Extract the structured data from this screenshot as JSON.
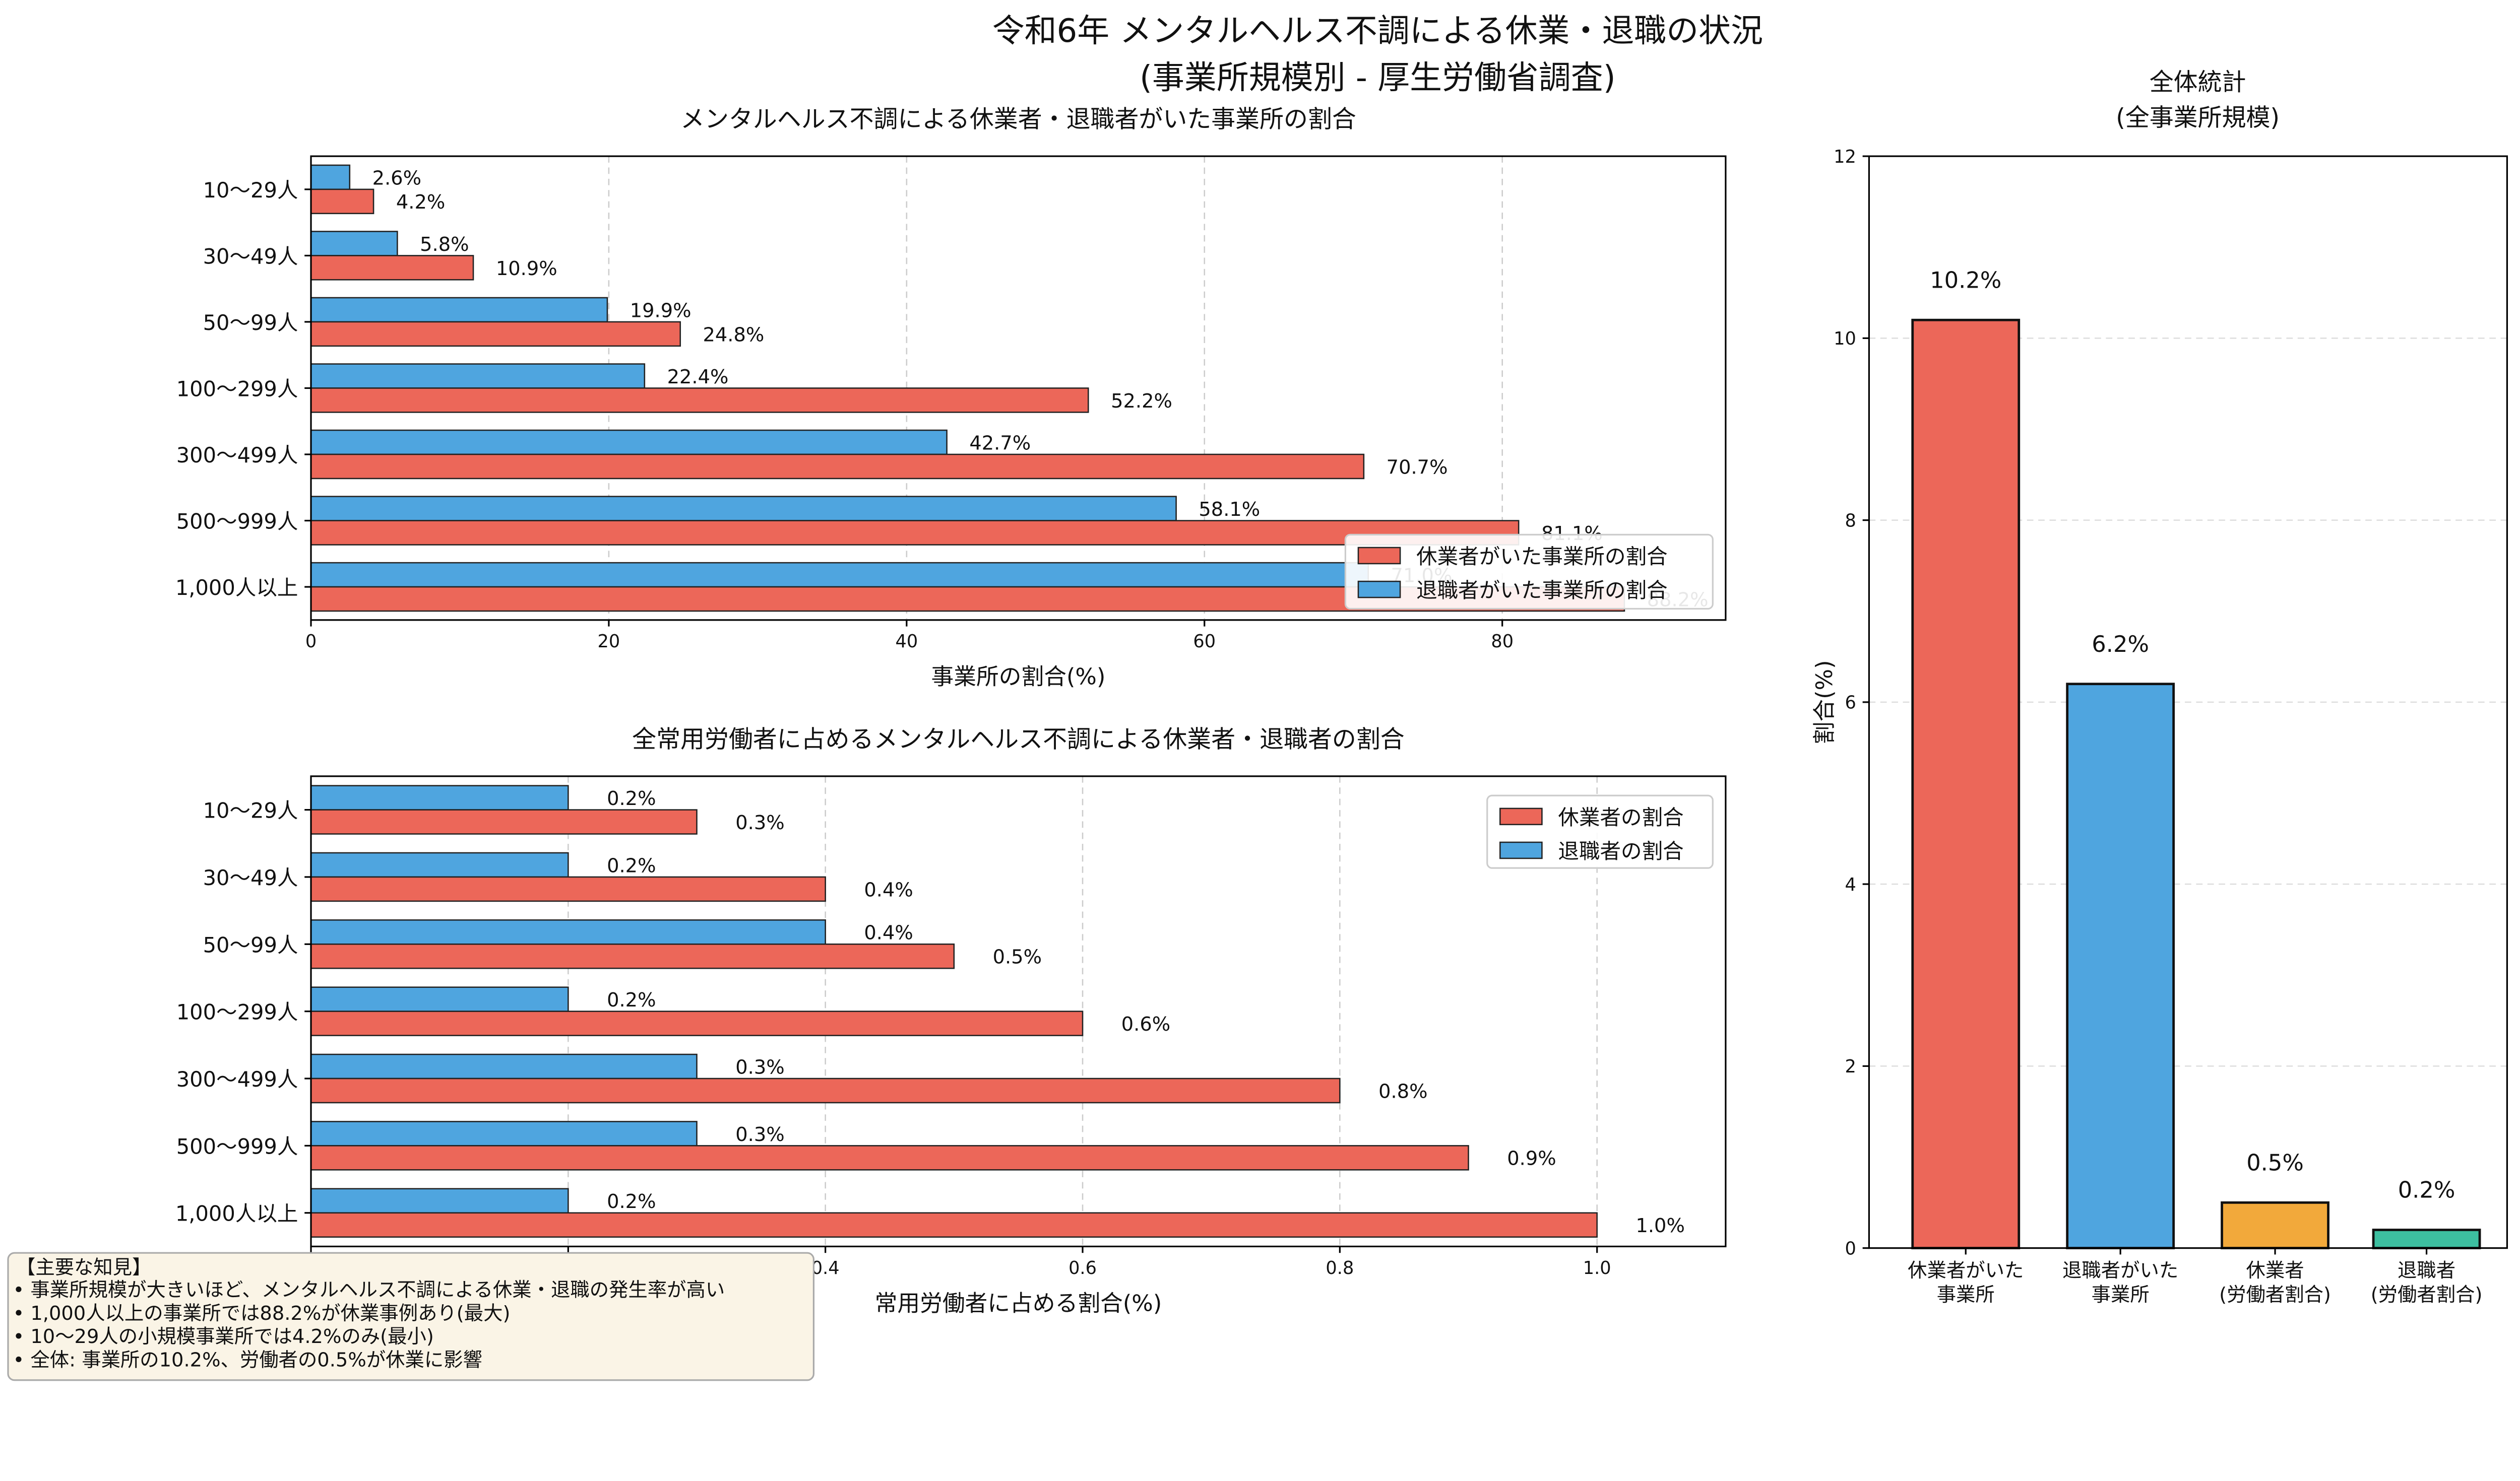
{
  "title_line1": "令和6年 メンタルヘルス不調による休業・退職の状況",
  "title_line2": "(事業所規模別 - 厚生労働省調査)",
  "colors": {
    "leave": "#EC6759",
    "resign": "#4FA5DF",
    "orange": "#F2A93B",
    "teal": "#3DBFA0"
  },
  "chart_data": [
    {
      "type": "bar",
      "orientation": "horizontal",
      "title": "メンタルヘルス不調による休業者・退職者がいた事業所の割合",
      "xlabel": "事業所の割合(%)",
      "xlim": [
        0,
        95
      ],
      "xticks": [
        0,
        20,
        40,
        60,
        80
      ],
      "grid": true,
      "legend_placement": "lower-right",
      "categories": [
        "10～29人",
        "30～49人",
        "50～99人",
        "100～299人",
        "300～499人",
        "500～999人",
        "1,000人以上"
      ],
      "series": [
        {
          "name": "休業者がいた事業所の割合",
          "values": [
            4.2,
            10.9,
            24.8,
            52.2,
            70.7,
            81.1,
            88.2
          ],
          "labels": [
            "4.2%",
            "10.9%",
            "24.8%",
            "52.2%",
            "70.7%",
            "81.1%",
            "88.2%"
          ]
        },
        {
          "name": "退職者がいた事業所の割合",
          "values": [
            2.6,
            5.8,
            19.9,
            22.4,
            42.7,
            58.1,
            71.0
          ],
          "labels": [
            "2.6%",
            "5.8%",
            "19.9%",
            "22.4%",
            "42.7%",
            "58.1%",
            "71.0%"
          ]
        }
      ]
    },
    {
      "type": "bar",
      "orientation": "horizontal",
      "title": "全常用労働者に占めるメンタルヘルス不調による休業者・退職者の割合",
      "xlabel": "常用労働者に占める割合(%)",
      "xlim": [
        0,
        1.1
      ],
      "xticks": [
        0.0,
        0.2,
        0.4,
        0.6,
        0.8,
        1.0
      ],
      "grid": true,
      "legend_placement": "upper-right",
      "categories": [
        "10～29人",
        "30～49人",
        "50～99人",
        "100～299人",
        "300～499人",
        "500～999人",
        "1,000人以上"
      ],
      "series": [
        {
          "name": "休業者の割合",
          "values": [
            0.3,
            0.4,
            0.5,
            0.6,
            0.8,
            0.9,
            1.0
          ],
          "labels": [
            "0.3%",
            "0.4%",
            "0.5%",
            "0.6%",
            "0.8%",
            "0.9%",
            "1.0%"
          ]
        },
        {
          "name": "退職者の割合",
          "values": [
            0.2,
            0.2,
            0.4,
            0.2,
            0.3,
            0.3,
            0.2
          ],
          "labels": [
            "0.2%",
            "0.2%",
            "0.4%",
            "0.2%",
            "0.3%",
            "0.3%",
            "0.2%"
          ]
        }
      ]
    },
    {
      "type": "bar",
      "title": "全体統計\n(全事業所規模)",
      "title_lines": [
        "全体統計",
        "(全事業所規模)"
      ],
      "ylabel": "割合(%)",
      "ylim": [
        0,
        12
      ],
      "yticks": [
        0,
        2,
        4,
        6,
        8,
        10,
        12
      ],
      "grid": true,
      "categories": [
        [
          "休業者がいた",
          "事業所"
        ],
        [
          "退職者がいた",
          "事業所"
        ],
        [
          "休業者",
          "(労働者割合)"
        ],
        [
          "退職者",
          "(労働者割合)"
        ]
      ],
      "values": [
        10.2,
        6.2,
        0.5,
        0.2
      ],
      "labels": [
        "10.2%",
        "6.2%",
        "0.5%",
        "0.2%"
      ],
      "bar_colors": [
        "#EC6759",
        "#4FA5DF",
        "#F2A93B",
        "#3DBFA0"
      ]
    }
  ],
  "notes": {
    "heading": "【主要な知見】",
    "items": [
      "• 事業所規模が大きいほど、メンタルヘルス不調による休業・退職の発生率が高い",
      "• 1,000人以上の事業所では88.2%が休業事例あり(最大)",
      "• 10～29人の小規模事業所では4.2%のみ(最小)",
      "• 全体: 事業所の10.2%、労働者の0.5%が休業に影響"
    ]
  }
}
